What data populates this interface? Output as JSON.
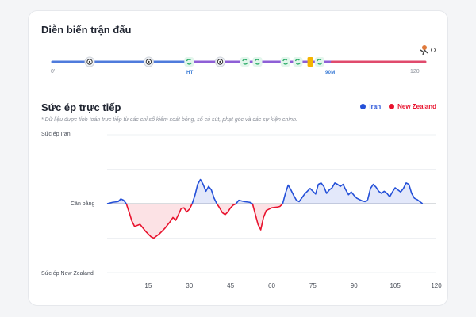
{
  "timeline": {
    "title": "Diễn biến trận đấu",
    "start_label": "0'",
    "end_label": "120'",
    "ht_label": "HT",
    "m90_label": "90M",
    "events": [
      {
        "minute": 12,
        "type": "goal"
      },
      {
        "minute": 31,
        "type": "goal"
      },
      {
        "minute": 44,
        "type": "sub"
      },
      {
        "minute": 54,
        "type": "goal"
      },
      {
        "minute": 62,
        "type": "sub"
      },
      {
        "minute": 66,
        "type": "sub"
      },
      {
        "minute": 75,
        "type": "sub"
      },
      {
        "minute": 79,
        "type": "sub"
      },
      {
        "minute": 83,
        "type": "yellow"
      },
      {
        "minute": 86,
        "type": "sub"
      }
    ],
    "icons": {
      "goal": "football-icon",
      "sub": "substitution-icon",
      "yellow": "yellow-card-icon",
      "end": "penalty-kick-icon"
    },
    "colors": {
      "first": "#4f7bdc",
      "second": "#8e5fd6",
      "extra": "#e04a6c",
      "sub": "#2fae6b",
      "yellow": "#f5b400"
    }
  },
  "pressure": {
    "title": "Sức ép trực tiếp",
    "note": "* Dữ liệu được tính toán trực tiếp từ các chỉ số kiểm soát bóng, số cú sút, phạt góc và các sự kiện chính.",
    "legend": [
      {
        "name": "Iran",
        "color": "#2450d8"
      },
      {
        "name": "New Zealand",
        "color": "#e8122d"
      }
    ],
    "y_labels": {
      "top": "Sức ép Iran",
      "mid": "Cân bằng",
      "bottom": "Sức ép New Zealand"
    }
  },
  "chart_data": {
    "type": "area",
    "xlim": [
      0,
      120
    ],
    "ylim": [
      -100,
      100
    ],
    "x_ticks": [
      15,
      30,
      45,
      60,
      75,
      90,
      105,
      120
    ],
    "grid": true,
    "legend_position": "top-right",
    "series": [
      {
        "name": "Iran",
        "points": [
          [
            0,
            0
          ],
          [
            2,
            2
          ],
          [
            4,
            3
          ],
          [
            5,
            7
          ],
          [
            6,
            5
          ],
          [
            7,
            0
          ]
        ],
        "color": "#2450d8"
      },
      {
        "name": "New Zealand",
        "points": [
          [
            7,
            0
          ],
          [
            8,
            -12
          ],
          [
            9,
            -25
          ],
          [
            10,
            -33
          ],
          [
            12,
            -30
          ],
          [
            14,
            -40
          ],
          [
            16,
            -48
          ],
          [
            17,
            -50
          ],
          [
            19,
            -44
          ],
          [
            21,
            -36
          ],
          [
            23,
            -26
          ],
          [
            24,
            -20
          ],
          [
            25,
            -24
          ],
          [
            26,
            -16
          ],
          [
            27,
            -7
          ],
          [
            28,
            -6
          ],
          [
            29,
            -12
          ],
          [
            30,
            -8
          ],
          [
            31,
            0
          ]
        ],
        "color": "#e8122d"
      },
      {
        "name": "Iran",
        "points": [
          [
            31,
            0
          ],
          [
            32,
            12
          ],
          [
            33,
            28
          ],
          [
            34,
            35
          ],
          [
            35,
            28
          ],
          [
            36,
            18
          ],
          [
            37,
            25
          ],
          [
            38,
            20
          ],
          [
            39,
            8
          ],
          [
            40,
            0
          ]
        ],
        "color": "#2450d8"
      },
      {
        "name": "New Zealand",
        "points": [
          [
            40,
            0
          ],
          [
            41,
            -6
          ],
          [
            42,
            -13
          ],
          [
            43,
            -16
          ],
          [
            44,
            -12
          ],
          [
            45,
            -6
          ],
          [
            46,
            -2
          ],
          [
            47,
            0
          ]
        ],
        "color": "#e8122d"
      },
      {
        "name": "Iran",
        "points": [
          [
            47,
            0
          ],
          [
            48,
            5
          ],
          [
            50,
            3
          ],
          [
            52,
            2
          ],
          [
            53,
            0
          ]
        ],
        "color": "#2450d8"
      },
      {
        "name": "New Zealand",
        "points": [
          [
            53,
            0
          ],
          [
            54,
            -15
          ],
          [
            55,
            -30
          ],
          [
            56,
            -38
          ],
          [
            57,
            -20
          ],
          [
            58,
            -10
          ],
          [
            60,
            -6
          ],
          [
            62,
            -5
          ],
          [
            63,
            -4
          ],
          [
            64,
            0
          ]
        ],
        "color": "#e8122d"
      },
      {
        "name": "Iran",
        "points": [
          [
            64,
            0
          ],
          [
            65,
            15
          ],
          [
            66,
            27
          ],
          [
            67,
            20
          ],
          [
            68,
            12
          ],
          [
            69,
            5
          ],
          [
            70,
            3
          ],
          [
            72,
            14
          ],
          [
            73,
            18
          ],
          [
            74,
            22
          ],
          [
            75,
            18
          ],
          [
            76,
            14
          ],
          [
            77,
            28
          ],
          [
            78,
            30
          ],
          [
            79,
            25
          ],
          [
            80,
            15
          ],
          [
            81,
            20
          ],
          [
            82,
            23
          ],
          [
            83,
            30
          ],
          [
            84,
            28
          ],
          [
            85,
            25
          ],
          [
            86,
            28
          ],
          [
            87,
            20
          ],
          [
            88,
            13
          ],
          [
            89,
            17
          ],
          [
            90,
            12
          ],
          [
            91,
            8
          ],
          [
            92,
            6
          ],
          [
            93,
            4
          ],
          [
            94,
            3
          ],
          [
            95,
            6
          ],
          [
            96,
            22
          ],
          [
            97,
            28
          ],
          [
            98,
            24
          ],
          [
            99,
            18
          ],
          [
            100,
            15
          ],
          [
            101,
            18
          ],
          [
            102,
            15
          ],
          [
            103,
            10
          ],
          [
            104,
            17
          ],
          [
            105,
            23
          ],
          [
            106,
            20
          ],
          [
            107,
            17
          ],
          [
            108,
            22
          ],
          [
            109,
            30
          ],
          [
            110,
            28
          ],
          [
            111,
            15
          ],
          [
            112,
            8
          ],
          [
            113,
            6
          ],
          [
            114,
            3
          ],
          [
            115,
            0
          ]
        ],
        "color": "#2450d8"
      }
    ]
  }
}
